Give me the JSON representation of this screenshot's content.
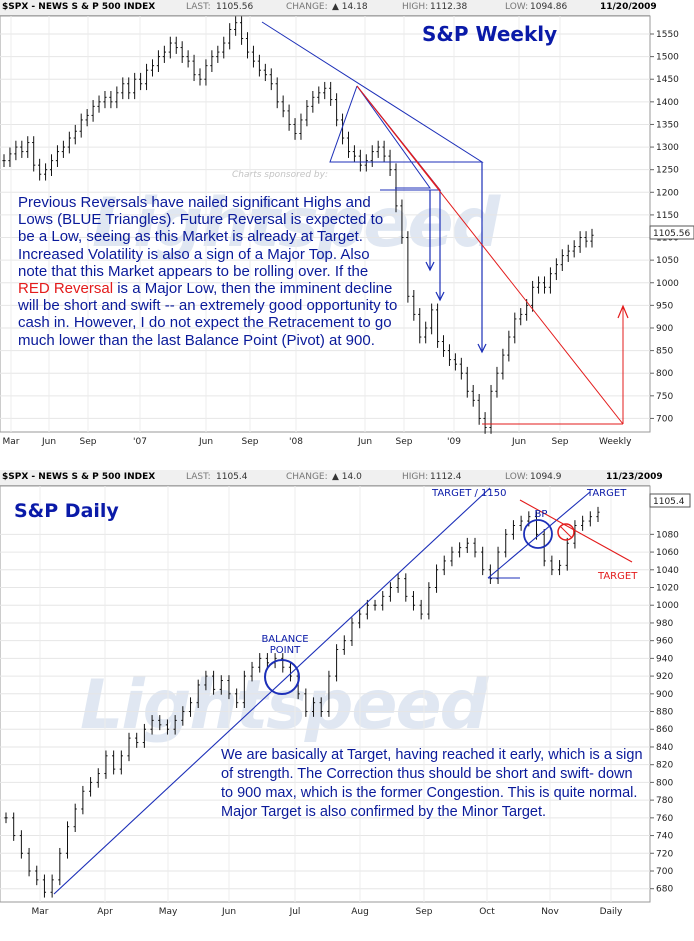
{
  "weekly": {
    "header": {
      "symbol": "$SPX - NEWS S & P 500 INDEX",
      "last_label": "LAST:",
      "last": "1105.56",
      "change_label": "CHANGE:",
      "change": "▲ 14.18",
      "high_label": "HIGH:",
      "high": "1112.38",
      "low_label": "LOW:",
      "low": "1094.86",
      "date": "11/20/2009"
    },
    "title": "S&P Weekly",
    "sponsor": "Charts sponsored by:",
    "watermark": "Lightspeed",
    "price_badge": "1105.56",
    "note_part1": "Previous Reversals have nailed significant Highs and Lows (BLUE Triangles).  Future Reversal is expected to be a Low, seeing as this Market is already at Target.  Increased Volatility is also a sign of a Major Top.  Also note that this Market appears to be rolling over.  If the ",
    "note_red": "RED Reversal",
    "note_part2": " is a Major Low, then the imminent decline will be short and swift -- an extremely good opportunity to cash in. However, I do not expect the Retracement to go much lower than the last Balance Point (Pivot) at 900."
  },
  "daily": {
    "header": {
      "symbol": "$SPX - NEWS S & P 500 INDEX",
      "last_label": "LAST:",
      "last": "1105.4",
      "change_label": "CHANGE:",
      "change": "▲ 14.0",
      "high_label": "HIGH:",
      "high": "1112.4",
      "low_label": "LOW:",
      "low": "1094.9",
      "date": "11/23/2009"
    },
    "title": "S&P Daily",
    "watermark": "Lightspeed",
    "price_badge": "1105.4",
    "note": "We are basically at Target, having reached it early, which is a sign of strength.  The Correction thus should be short and swift- down to 900 max, which is the former Congestion.  This is quite normal.  Major Target is also confirmed by the Minor Target."
  },
  "colors": {
    "note_blue": "#0a1a9a",
    "title_blue": "#0a1aa8",
    "red": "#e31b1b",
    "up_arrow": "#1a8a1a"
  },
  "chart_data": [
    {
      "type": "bar",
      "subtype": "ohlc",
      "title": "S&P Weekly",
      "period": "Weekly",
      "x_tick_labels": [
        "Mar",
        "Jun",
        "Sep",
        "'07",
        "Jun",
        "Sep",
        "'08",
        "Jun",
        "Sep",
        "'09",
        "Jun",
        "Sep"
      ],
      "y_ticks": [
        700,
        750,
        800,
        850,
        900,
        950,
        1000,
        1050,
        1100,
        1150,
        1200,
        1250,
        1300,
        1350,
        1400,
        1450,
        1500,
        1550
      ],
      "ylim": [
        660,
        1580
      ],
      "series": [
        {
          "close": [
            1270,
            1285,
            1300,
            1290,
            1310,
            1260,
            1240,
            1250,
            1270,
            1290,
            1300,
            1320,
            1335,
            1360,
            1370,
            1390,
            1400,
            1410,
            1400,
            1420,
            1440,
            1420,
            1450,
            1440,
            1470,
            1480,
            1500,
            1510,
            1530,
            1520,
            1500,
            1490,
            1460,
            1450,
            1480,
            1500,
            1510,
            1530,
            1560,
            1575,
            1540,
            1510,
            1490,
            1470,
            1460,
            1440,
            1400,
            1380,
            1350,
            1330,
            1360,
            1390,
            1410,
            1420,
            1430,
            1405,
            1360,
            1320,
            1290,
            1280,
            1260,
            1270,
            1290,
            1300,
            1280,
            1250,
            1170,
            1100,
            970,
            930,
            880,
            900,
            940,
            870,
            850,
            830,
            820,
            800,
            760,
            740,
            700,
            680,
            760,
            800,
            840,
            880,
            920,
            930,
            950,
            990,
            1000,
            990,
            1020,
            1040,
            1060,
            1070,
            1080,
            1100,
            1092,
            1105
          ]
        }
      ],
      "annotations": {
        "blue_target_lows": [
          930,
          850,
          820,
          680
        ],
        "red_reversal_target_low": 680,
        "balance_point": 900
      }
    },
    {
      "type": "bar",
      "subtype": "ohlc",
      "title": "S&P Daily",
      "period": "Daily",
      "x_tick_labels": [
        "Mar",
        "Apr",
        "May",
        "Jun",
        "Jul",
        "Aug",
        "Sep",
        "Oct",
        "Nov",
        "Daily"
      ],
      "y_ticks": [
        680,
        700,
        720,
        740,
        760,
        780,
        800,
        820,
        840,
        860,
        880,
        900,
        920,
        940,
        960,
        980,
        1000,
        1020,
        1040,
        1060,
        1080
      ],
      "ylim": [
        665,
        1112
      ],
      "series": [
        {
          "close": [
            760,
            740,
            720,
            700,
            690,
            676,
            690,
            720,
            750,
            770,
            790,
            800,
            810,
            830,
            815,
            830,
            850,
            845,
            860,
            870,
            865,
            860,
            870,
            880,
            890,
            910,
            920,
            905,
            915,
            900,
            890,
            920,
            930,
            940,
            935,
            940,
            930,
            920,
            900,
            880,
            890,
            880,
            920,
            950,
            960,
            980,
            990,
            1000,
            1000,
            1010,
            1020,
            1030,
            1010,
            1000,
            990,
            1020,
            1040,
            1050,
            1060,
            1065,
            1070,
            1060,
            1040,
            1030,
            1060,
            1080,
            1090,
            1095,
            1100,
            1080,
            1050,
            1040,
            1045,
            1070,
            1090,
            1095,
            1100,
            1105
          ]
        }
      ],
      "annotations": {
        "balance_point_label": "BALANCE POINT",
        "balance_point": 900,
        "bp_label": "BP",
        "target_1150_label": "TARGET  /  1150",
        "target_top_label": "TARGET",
        "target_red_label": "TARGET",
        "congestion_level": 900
      }
    }
  ]
}
